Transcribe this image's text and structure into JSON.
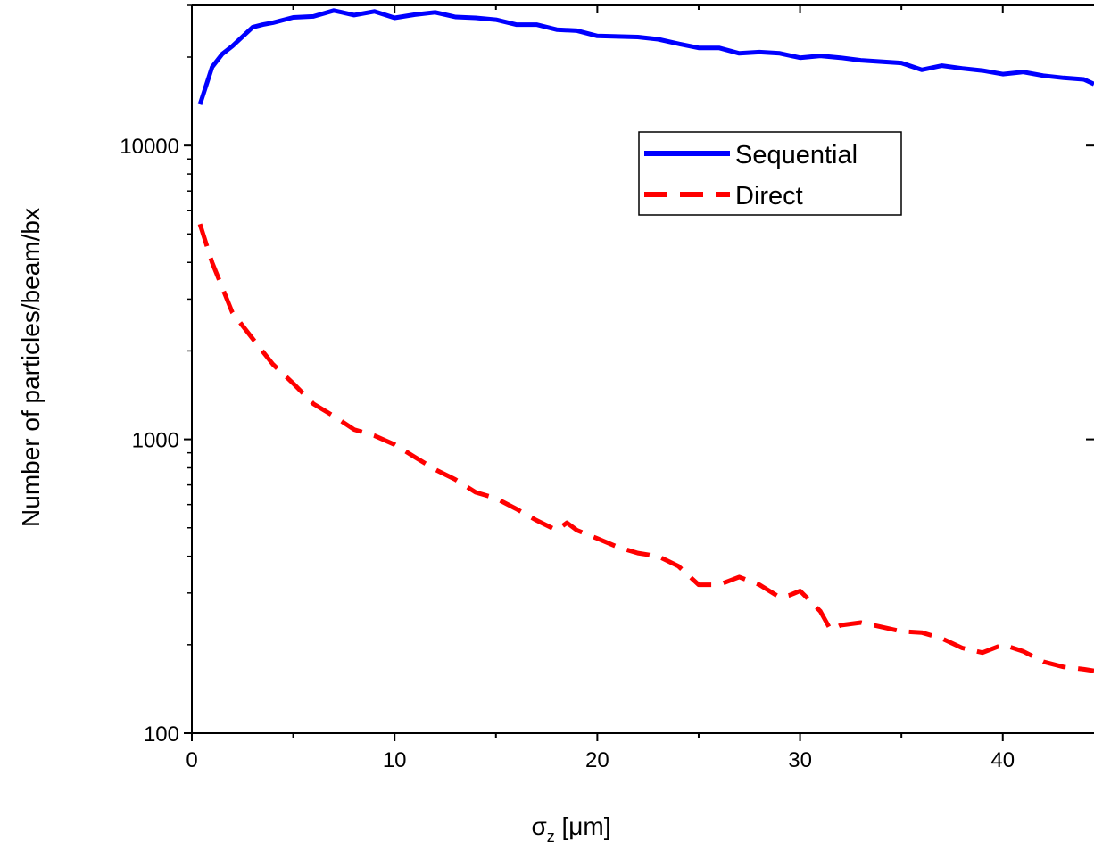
{
  "chart_data": {
    "type": "line",
    "title": "",
    "xlabel": "σz [μm]",
    "xlabel_main": "σ",
    "xlabel_sub": "z",
    "xlabel_rest": " [μm]",
    "ylabel": "Number of particles/beam/bx",
    "yscale": "log",
    "xlim": [
      0,
      44.5
    ],
    "ylim": [
      100,
      30000
    ],
    "xticks": [
      0,
      10,
      20,
      30,
      40
    ],
    "xtick_labels": [
      "0",
      "10",
      "20",
      "30",
      "40"
    ],
    "yticks": [
      100,
      1000,
      10000
    ],
    "ytick_labels": [
      "100",
      "1000",
      "10000"
    ],
    "grid": false,
    "legend_position": "upper-middle-right",
    "series": [
      {
        "name": "Sequential",
        "color": "#0000ff",
        "style": "solid",
        "x": [
          0.4,
          1,
          1.5,
          2,
          3,
          3.5,
          4,
          5,
          6,
          7,
          8,
          9,
          10,
          11,
          12,
          13,
          14,
          15,
          16,
          17,
          18,
          19,
          20,
          21,
          22,
          23,
          24,
          25,
          26,
          27,
          28,
          29,
          30,
          31,
          32,
          33,
          34,
          35,
          36,
          37,
          38,
          39,
          40,
          41,
          42,
          43,
          44,
          44.5
        ],
        "y": [
          13800,
          18500,
          20500,
          21800,
          25300,
          25800,
          26200,
          27300,
          27500,
          28800,
          27800,
          28600,
          27200,
          27900,
          28400,
          27400,
          27200,
          26800,
          25800,
          25800,
          24800,
          24600,
          23600,
          23500,
          23400,
          23000,
          22200,
          21500,
          21500,
          20600,
          20800,
          20600,
          19900,
          20200,
          19900,
          19500,
          19300,
          19100,
          18100,
          18700,
          18300,
          18000,
          17500,
          17800,
          17300,
          17000,
          16800,
          16200
        ]
      },
      {
        "name": "Direct",
        "color": "#ff0000",
        "style": "dashed",
        "x": [
          0.4,
          1,
          2,
          3,
          4,
          5,
          6,
          7,
          8,
          9,
          10,
          11,
          12,
          13,
          14,
          15,
          16,
          17,
          18,
          18.5,
          19,
          20,
          21,
          22,
          23,
          24,
          25,
          26,
          27,
          28,
          29,
          29.5,
          30,
          31,
          31.5,
          32,
          33,
          34,
          35,
          36,
          37,
          38,
          39,
          40,
          41,
          42,
          43,
          44,
          44.5
        ],
        "y": [
          5400,
          4000,
          2700,
          2200,
          1800,
          1550,
          1320,
          1200,
          1080,
          1030,
          960,
          870,
          790,
          730,
          660,
          630,
          580,
          530,
          490,
          520,
          490,
          460,
          430,
          410,
          400,
          370,
          320,
          320,
          340,
          320,
          290,
          295,
          305,
          260,
          225,
          233,
          238,
          230,
          222,
          220,
          210,
          195,
          188,
          200,
          190,
          175,
          168,
          165,
          163
        ]
      }
    ]
  }
}
